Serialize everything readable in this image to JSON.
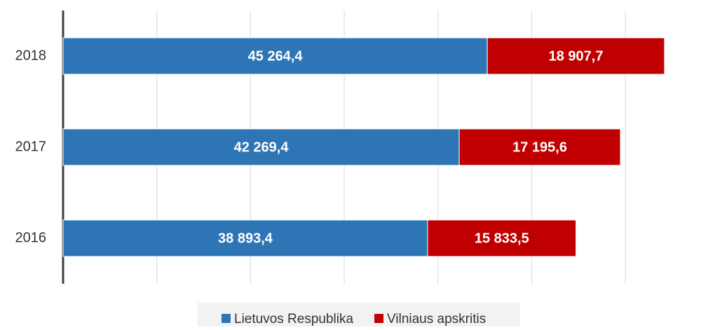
{
  "chart_data": {
    "type": "bar",
    "orientation": "horizontal",
    "stacked": true,
    "categories": [
      "2016",
      "2017",
      "2018"
    ],
    "series": [
      {
        "name": "Lietuvos Respublika",
        "color": "#2e75b6",
        "values": [
          38893.4,
          42269.4,
          45264.4
        ],
        "value_labels": [
          "38 893,4",
          "42 269,4",
          "45 264,4"
        ]
      },
      {
        "name": "Vilniaus apskritis",
        "color": "#c00000",
        "values": [
          15833.5,
          17195.6,
          18907.7
        ],
        "value_labels": [
          "15 833,5",
          "17 195,6",
          "18 907,7"
        ]
      }
    ],
    "xlim": [
      0,
      65000
    ],
    "xticks": [
      0,
      10000,
      20000,
      30000,
      40000,
      50000,
      60000
    ],
    "grid": true
  }
}
